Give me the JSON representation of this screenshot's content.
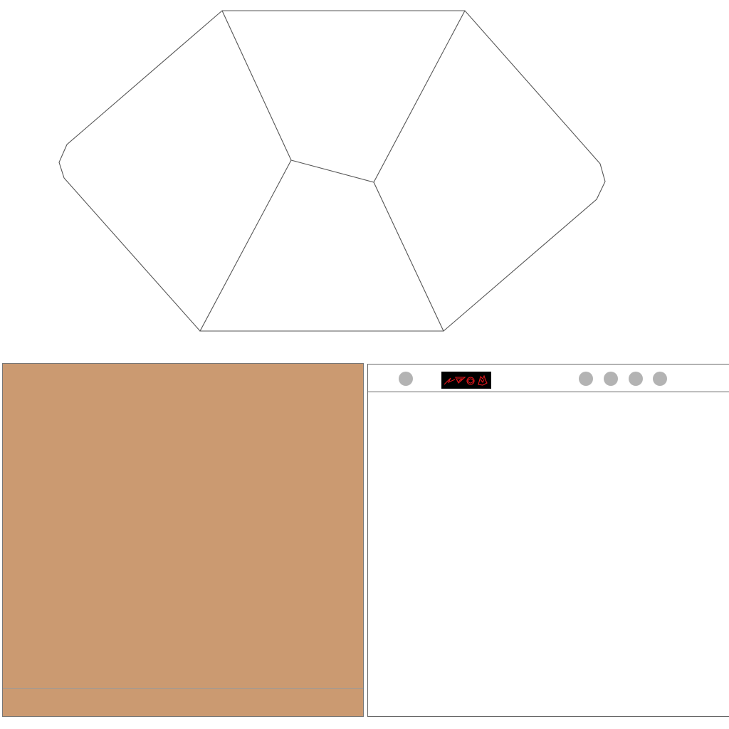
{
  "colors": {
    "canvas_background": "#ffffff",
    "outline_stroke": "#555555",
    "board_fill": "#cb9a71",
    "panel_background": "#ffffff",
    "dot_button": "#b3b3b3",
    "pieces_strip_background": "#000000",
    "pieces_strip_stroke": "#e8181e"
  },
  "icons": {
    "pieces_strip": [
      "arrow-piece-icon",
      "triangle-piece-icon",
      "round-piece-icon",
      "hand-piece-icon"
    ]
  },
  "toolbar": {
    "dot_buttons": 5
  }
}
